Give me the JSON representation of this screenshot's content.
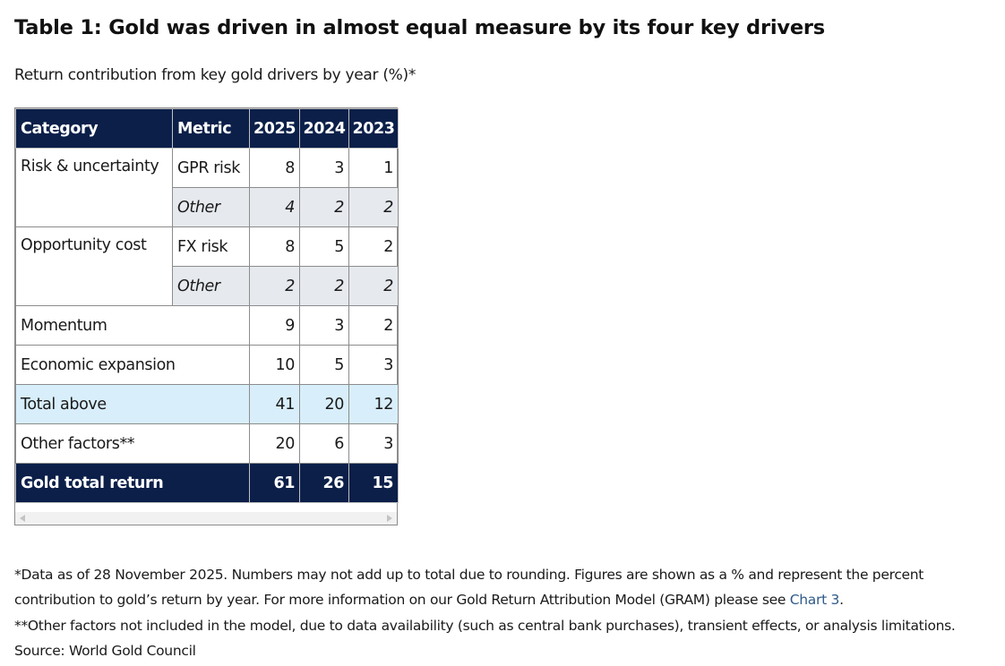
{
  "title": "Table 1: Gold was driven in almost equal measure by its four key drivers",
  "subtitle": "Return contribution from key gold drivers by year (%)*",
  "table": {
    "headers": {
      "category": "Category",
      "metric": "Metric",
      "y2025": "2025",
      "y2024": "2024",
      "y2023": "2023"
    },
    "rows": {
      "risk_gpr": {
        "category": "Risk & uncertainty",
        "metric": "GPR risk",
        "v2025": "8",
        "v2024": "3",
        "v2023": "1"
      },
      "risk_other": {
        "metric": "Other",
        "v2025": "4",
        "v2024": "2",
        "v2023": "2"
      },
      "opp_fx": {
        "category": "Opportunity cost",
        "metric": "FX risk",
        "v2025": "8",
        "v2024": "5",
        "v2023": "2"
      },
      "opp_other": {
        "metric": "Other",
        "v2025": "2",
        "v2024": "2",
        "v2023": "2"
      },
      "momentum": {
        "category": "Momentum",
        "v2025": "9",
        "v2024": "3",
        "v2023": "2"
      },
      "economic": {
        "category": "Economic expansion",
        "v2025": "10",
        "v2024": "5",
        "v2023": "3"
      },
      "total_above": {
        "category": "Total above",
        "v2025": "41",
        "v2024": "20",
        "v2023": "12"
      },
      "other_factors": {
        "category": "Other factors**",
        "v2025": "20",
        "v2024": "6",
        "v2023": "3"
      },
      "gold_total": {
        "category": "Gold total return",
        "v2025": "61",
        "v2024": "26",
        "v2023": "15"
      }
    }
  },
  "notes": {
    "line1": "*Data as of 28 November 2025. Numbers may not add up to total due to rounding. Figures are shown as a % and represent the percent",
    "line2_prefix": "contribution to gold’s return by year. For more information on our Gold Return Attribution Model (GRAM) please see ",
    "line2_link": "Chart 3",
    "line2_suffix": ".",
    "line3": "**Other factors not included in the model, due to data availability (such as central bank purchases), transient effects, or analysis limitations.",
    "line4": "Source: World Gold Council"
  },
  "colors": {
    "header_bg": "#0b1f49",
    "subrow_bg": "#e6e9ee",
    "total_row_bg": "#d8eefb",
    "link": "#2f5a8a"
  },
  "icons": {
    "scroll_left": "scroll-left-arrow-icon",
    "scroll_right": "scroll-right-arrow-icon"
  }
}
